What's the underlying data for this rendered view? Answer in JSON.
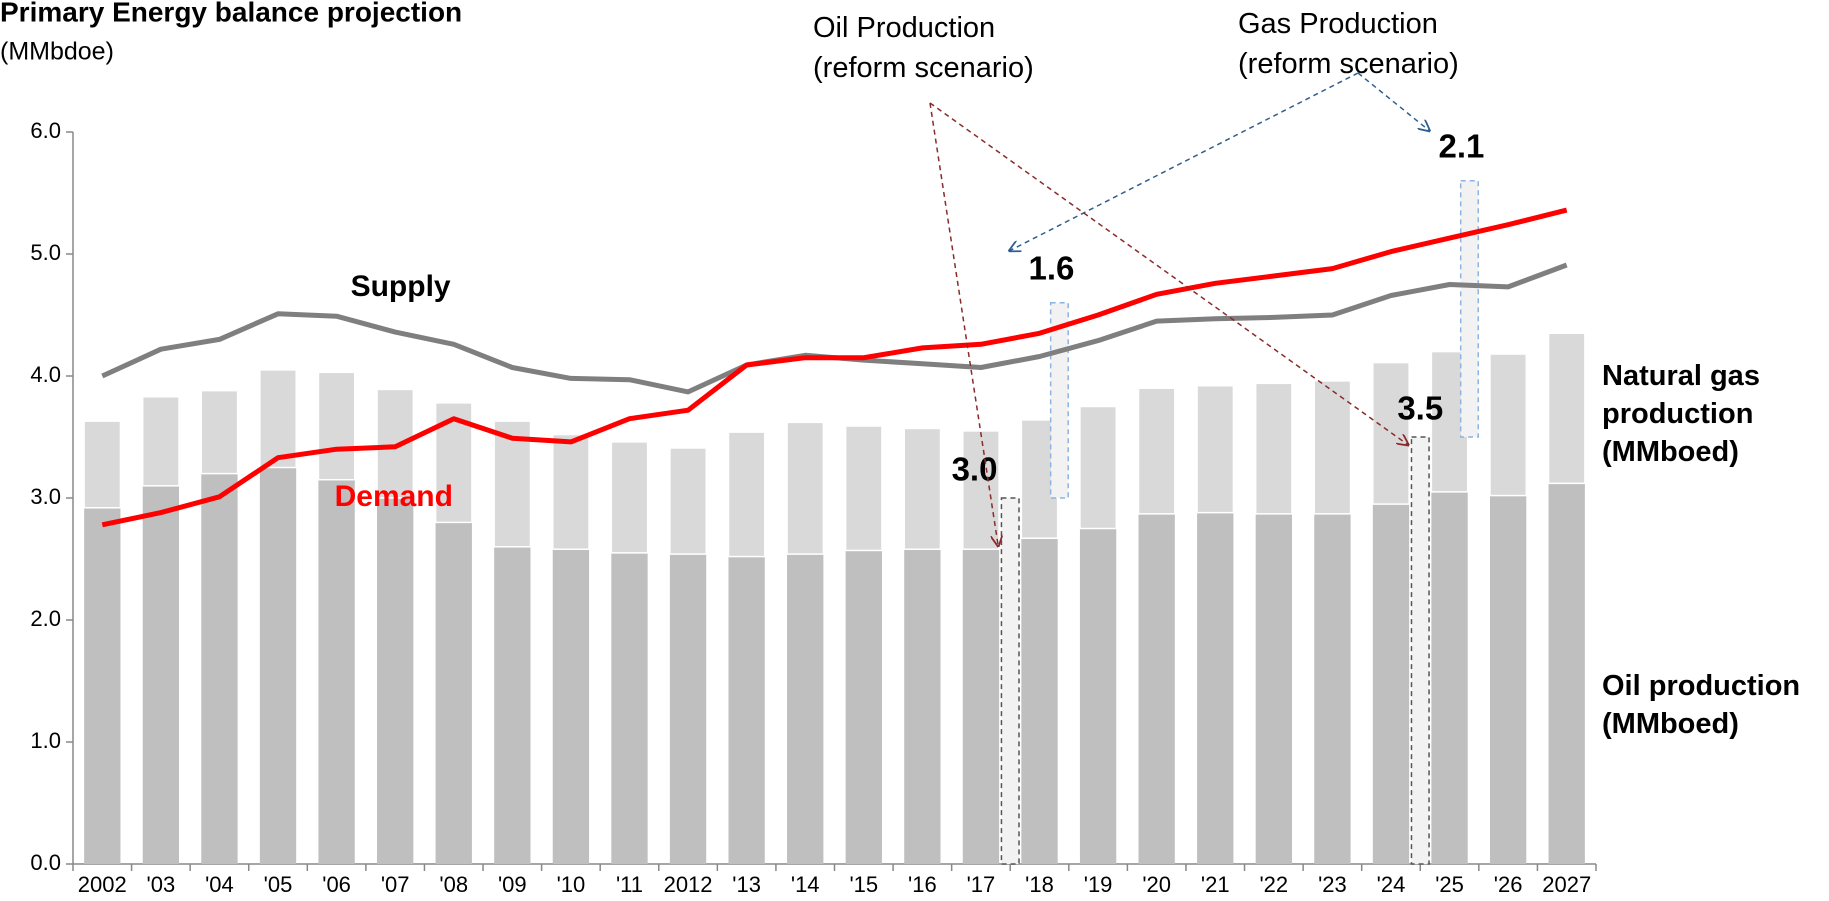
{
  "chart_data": {
    "type": "bar-line",
    "title": "Primary Energy balance projection",
    "subtitle": "(MMbdoe)",
    "categories": [
      "2002",
      "'03",
      "'04",
      "'05",
      "'06",
      "'07",
      "'08",
      "'09",
      "'10",
      "'11",
      "2012",
      "'13",
      "'14",
      "'15",
      "'16",
      "'17",
      "'18",
      "'19",
      "'20",
      "'21",
      "'22",
      "'23",
      "'24",
      "'25",
      "'26",
      "2027"
    ],
    "series": [
      {
        "name": "Oil production (MMboed)",
        "kind": "bar",
        "color": "#bfbfbf",
        "values": [
          2.92,
          3.1,
          3.2,
          3.25,
          3.15,
          3.0,
          2.8,
          2.6,
          2.58,
          2.55,
          2.54,
          2.52,
          2.54,
          2.57,
          2.58,
          2.58,
          2.67,
          2.75,
          2.87,
          2.88,
          2.87,
          2.87,
          2.95,
          3.05,
          3.02,
          3.12
        ]
      },
      {
        "name": "Natural gas production (MMboed)",
        "kind": "bar",
        "color": "#d9d9d9",
        "values": [
          0.71,
          0.73,
          0.68,
          0.8,
          0.88,
          0.89,
          0.98,
          1.03,
          0.94,
          0.91,
          0.87,
          1.02,
          1.08,
          1.02,
          0.99,
          0.97,
          0.97,
          1.0,
          1.03,
          1.04,
          1.07,
          1.09,
          1.16,
          1.15,
          1.16,
          1.23
        ]
      },
      {
        "name": "Supply",
        "kind": "line",
        "color": "#7f7f7f",
        "values": [
          4.0,
          4.22,
          4.3,
          4.51,
          4.49,
          4.36,
          4.26,
          4.07,
          3.98,
          3.97,
          3.87,
          4.09,
          4.17,
          4.13,
          4.1,
          4.07,
          4.16,
          4.29,
          4.45,
          4.47,
          4.48,
          4.5,
          4.66,
          4.75,
          4.73,
          4.91
        ]
      },
      {
        "name": "Demand",
        "kind": "line",
        "color": "#ff0000",
        "values": [
          2.78,
          2.88,
          3.01,
          3.33,
          3.4,
          3.42,
          3.65,
          3.49,
          3.46,
          3.65,
          3.72,
          4.09,
          4.15,
          4.15,
          4.23,
          4.26,
          4.35,
          4.5,
          4.67,
          4.76,
          4.82,
          4.88,
          5.02,
          5.13,
          5.24,
          5.36
        ]
      }
    ],
    "reform_scenario": [
      {
        "category": "'18",
        "values": [
          3.0,
          1.6
        ],
        "value_labels": [
          "3.0",
          "1.6"
        ]
      },
      {
        "category": "'25",
        "values": [
          3.5,
          2.1
        ],
        "value_labels": [
          "3.5",
          "2.1"
        ]
      }
    ],
    "annotations": [
      "Oil Production (reform scenario)",
      "Gas Production (reform scenario)"
    ],
    "ylim": [
      0,
      6
    ],
    "yticks": [
      {
        "value": 0,
        "label": "0.0"
      },
      {
        "value": 1,
        "label": "1.0"
      },
      {
        "value": 2,
        "label": "2.0"
      },
      {
        "value": 3,
        "label": "3.0"
      },
      {
        "value": 4,
        "label": "4.0"
      },
      {
        "value": 5,
        "label": "5.0"
      },
      {
        "value": 6,
        "label": "6.0"
      }
    ],
    "grid": false
  }
}
